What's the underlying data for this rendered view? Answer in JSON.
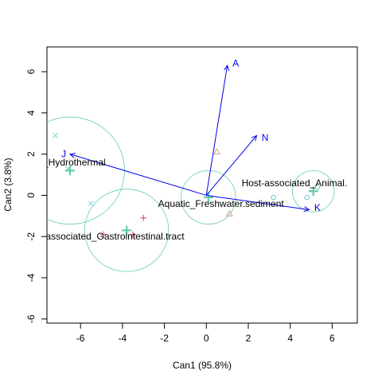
{
  "chart_data": {
    "type": "scatter",
    "xlabel": "Can1 (95.8%)",
    "ylabel": "Can2 (3.8%)",
    "xlim": [
      -7.6,
      7.2
    ],
    "ylim": [
      -6.2,
      7.2
    ],
    "xticks": [
      -6,
      -4,
      -2,
      0,
      2,
      4,
      6
    ],
    "yticks": [
      -6,
      -4,
      -2,
      0,
      2,
      4,
      6
    ],
    "grid": false,
    "colors": {
      "circle": "#66CCAA",
      "arrow": "#0000EE",
      "plus": "#DD4466",
      "triangle": "#C8A898",
      "xmark": "#88CCDD",
      "circle_point": "#66CCCC"
    },
    "groups": [
      {
        "label": "nal_Hydrothermal",
        "center": [
          -6.5,
          1.2
        ],
        "radius": 2.6,
        "label_at": [
          -6.6,
          1.6
        ],
        "points": [
          {
            "x": -7.2,
            "y": 2.9,
            "shape": "x"
          },
          {
            "x": -6.6,
            "y": 1.3,
            "shape": "x"
          },
          {
            "x": -5.5,
            "y": -0.4,
            "shape": "x"
          }
        ]
      },
      {
        "label": "Host-associated_Gastrointestinal.tract",
        "center": [
          -3.8,
          -1.7
        ],
        "radius": 2.0,
        "label_at": [
          -4.9,
          -2.0
        ],
        "points": [
          {
            "x": -3.0,
            "y": -1.1,
            "shape": "plus"
          },
          {
            "x": -4.9,
            "y": -1.9,
            "shape": "plus"
          },
          {
            "x": -3.5,
            "y": -1.9,
            "shape": "plus"
          }
        ]
      },
      {
        "label": "Aquatic_Freshwater.sediment",
        "center": [
          0.1,
          -0.1
        ],
        "radius": 1.3,
        "label_at": [
          0.7,
          -0.4
        ],
        "points": [
          {
            "x": 0.5,
            "y": 2.1,
            "shape": "triangle"
          },
          {
            "x": 1.1,
            "y": -0.9,
            "shape": "triangle"
          }
        ]
      },
      {
        "label": "Host-associated_Animal.",
        "center": [
          5.1,
          0.2
        ],
        "radius": 1.0,
        "label_at": [
          4.2,
          0.6
        ],
        "points": [
          {
            "x": 3.2,
            "y": -0.1,
            "shape": "circle"
          },
          {
            "x": 4.8,
            "y": -0.1,
            "shape": "circle"
          },
          {
            "x": 5.3,
            "y": 0.4,
            "shape": "circle"
          }
        ]
      }
    ],
    "arrows": [
      {
        "label": "A",
        "end": [
          1.0,
          6.3
        ],
        "label_at": [
          1.4,
          6.4
        ]
      },
      {
        "label": "N",
        "end": [
          2.4,
          2.9
        ],
        "label_at": [
          2.8,
          2.8
        ]
      },
      {
        "label": "J",
        "end": [
          -6.5,
          2.0
        ],
        "label_at": [
          -6.8,
          2.0
        ]
      },
      {
        "label": "K",
        "end": [
          4.9,
          -0.7
        ],
        "label_at": [
          5.3,
          -0.6
        ]
      }
    ]
  }
}
